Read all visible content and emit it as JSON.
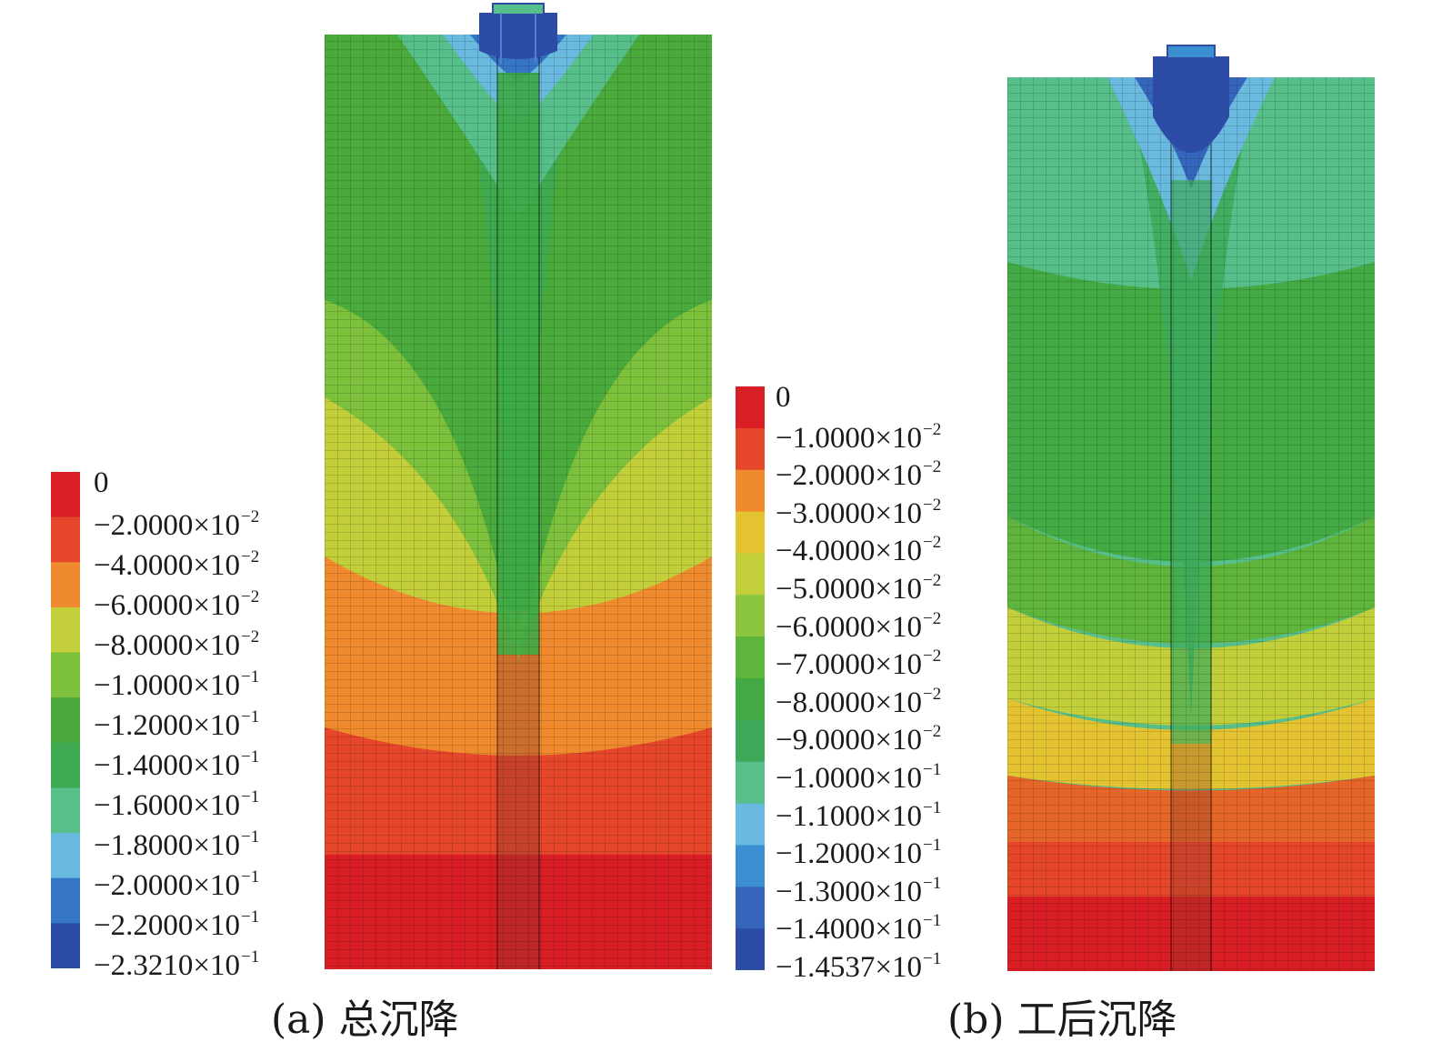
{
  "panels": [
    {
      "id": "a",
      "caption": "(a) 总沉降",
      "legend": {
        "bands": [
          "#d91e26",
          "#e6462a",
          "#f08a2e",
          "#c2cf3a",
          "#7cc03c",
          "#4aaa3c",
          "#3daa52",
          "#56bf8a",
          "#6ab9df",
          "#3575c4",
          "#2d4ca5"
        ],
        "labels": [
          {
            "mantissa": "0",
            "exponent": ""
          },
          {
            "mantissa": "−2.0000×10",
            "exponent": "−2"
          },
          {
            "mantissa": "−4.0000×10",
            "exponent": "−2"
          },
          {
            "mantissa": "−6.0000×10",
            "exponent": "−2"
          },
          {
            "mantissa": "−8.0000×10",
            "exponent": "−2"
          },
          {
            "mantissa": "−1.0000×10",
            "exponent": "−1"
          },
          {
            "mantissa": "−1.2000×10",
            "exponent": "−1"
          },
          {
            "mantissa": "−1.4000×10",
            "exponent": "−1"
          },
          {
            "mantissa": "−1.6000×10",
            "exponent": "−1"
          },
          {
            "mantissa": "−1.8000×10",
            "exponent": "−1"
          },
          {
            "mantissa": "−2.0000×10",
            "exponent": "−1"
          },
          {
            "mantissa": "−2.2000×10",
            "exponent": "−1"
          },
          {
            "mantissa": "−2.3210×10",
            "exponent": "−1"
          }
        ]
      }
    },
    {
      "id": "b",
      "caption": "(b) 工后沉降",
      "legend": {
        "bands": [
          "#d91e26",
          "#e6462a",
          "#f08a2e",
          "#e3c330",
          "#c2cf3a",
          "#8cc63e",
          "#5fb43c",
          "#44aa44",
          "#3daa5a",
          "#56bf8a",
          "#6ab9df",
          "#3b8fd0",
          "#3566bb",
          "#2d4ca5"
        ],
        "labels": [
          {
            "mantissa": "0",
            "exponent": ""
          },
          {
            "mantissa": "−1.0000×10",
            "exponent": "−2"
          },
          {
            "mantissa": "−2.0000×10",
            "exponent": "−2"
          },
          {
            "mantissa": "−3.0000×10",
            "exponent": "−2"
          },
          {
            "mantissa": "−4.0000×10",
            "exponent": "−2"
          },
          {
            "mantissa": "−5.0000×10",
            "exponent": "−2"
          },
          {
            "mantissa": "−6.0000×10",
            "exponent": "−2"
          },
          {
            "mantissa": "−7.0000×10",
            "exponent": "−2"
          },
          {
            "mantissa": "−8.0000×10",
            "exponent": "−2"
          },
          {
            "mantissa": "−9.0000×10",
            "exponent": "−2"
          },
          {
            "mantissa": "−1.0000×10",
            "exponent": "−1"
          },
          {
            "mantissa": "−1.1000×10",
            "exponent": "−1"
          },
          {
            "mantissa": "−1.2000×10",
            "exponent": "−1"
          },
          {
            "mantissa": "−1.3000×10",
            "exponent": "−1"
          },
          {
            "mantissa": "−1.4000×10",
            "exponent": "−1"
          },
          {
            "mantissa": "−1.4537×10",
            "exponent": "−1"
          }
        ]
      }
    }
  ]
}
